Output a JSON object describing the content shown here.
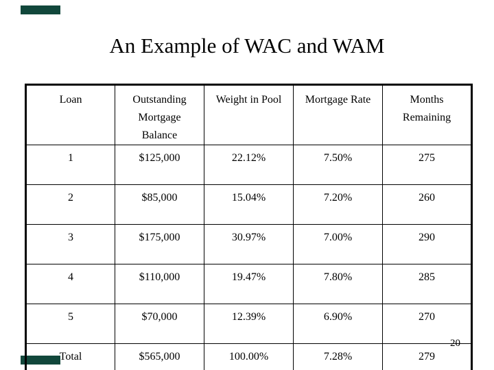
{
  "slide": {
    "title": "An Example of WAC and WAM",
    "page_number": "20",
    "accent_color": "#11473b"
  },
  "table": {
    "headers": [
      "Loan",
      "Outstanding Mortgage Balance",
      "Weight in Pool",
      "Mortgage Rate",
      "Months Remaining"
    ],
    "rows": [
      [
        "1",
        "$125,000",
        "22.12%",
        "7.50%",
        "275"
      ],
      [
        "2",
        "$85,000",
        "15.04%",
        "7.20%",
        "260"
      ],
      [
        "3",
        "$175,000",
        "30.97%",
        "7.00%",
        "290"
      ],
      [
        "4",
        "$110,000",
        "19.47%",
        "7.80%",
        "285"
      ],
      [
        "5",
        "$70,000",
        "12.39%",
        "6.90%",
        "270"
      ],
      [
        "Total",
        "$565,000",
        "100.00%",
        "7.28%",
        "279"
      ]
    ]
  }
}
